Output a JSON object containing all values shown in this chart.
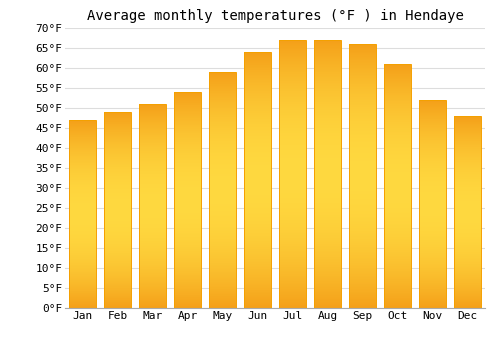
{
  "title": "Average monthly temperatures (°F ) in Hendaye",
  "months": [
    "Jan",
    "Feb",
    "Mar",
    "Apr",
    "May",
    "Jun",
    "Jul",
    "Aug",
    "Sep",
    "Oct",
    "Nov",
    "Dec"
  ],
  "values": [
    47,
    49,
    51,
    54,
    59,
    64,
    67,
    67,
    66,
    61,
    52,
    48
  ],
  "bar_color_center": "#FFCC44",
  "bar_color_edge": "#F5A000",
  "ylim": [
    0,
    70
  ],
  "yticks": [
    0,
    5,
    10,
    15,
    20,
    25,
    30,
    35,
    40,
    45,
    50,
    55,
    60,
    65,
    70
  ],
  "background_color": "#ffffff",
  "grid_color": "#dddddd",
  "title_fontsize": 10,
  "tick_fontsize": 8
}
